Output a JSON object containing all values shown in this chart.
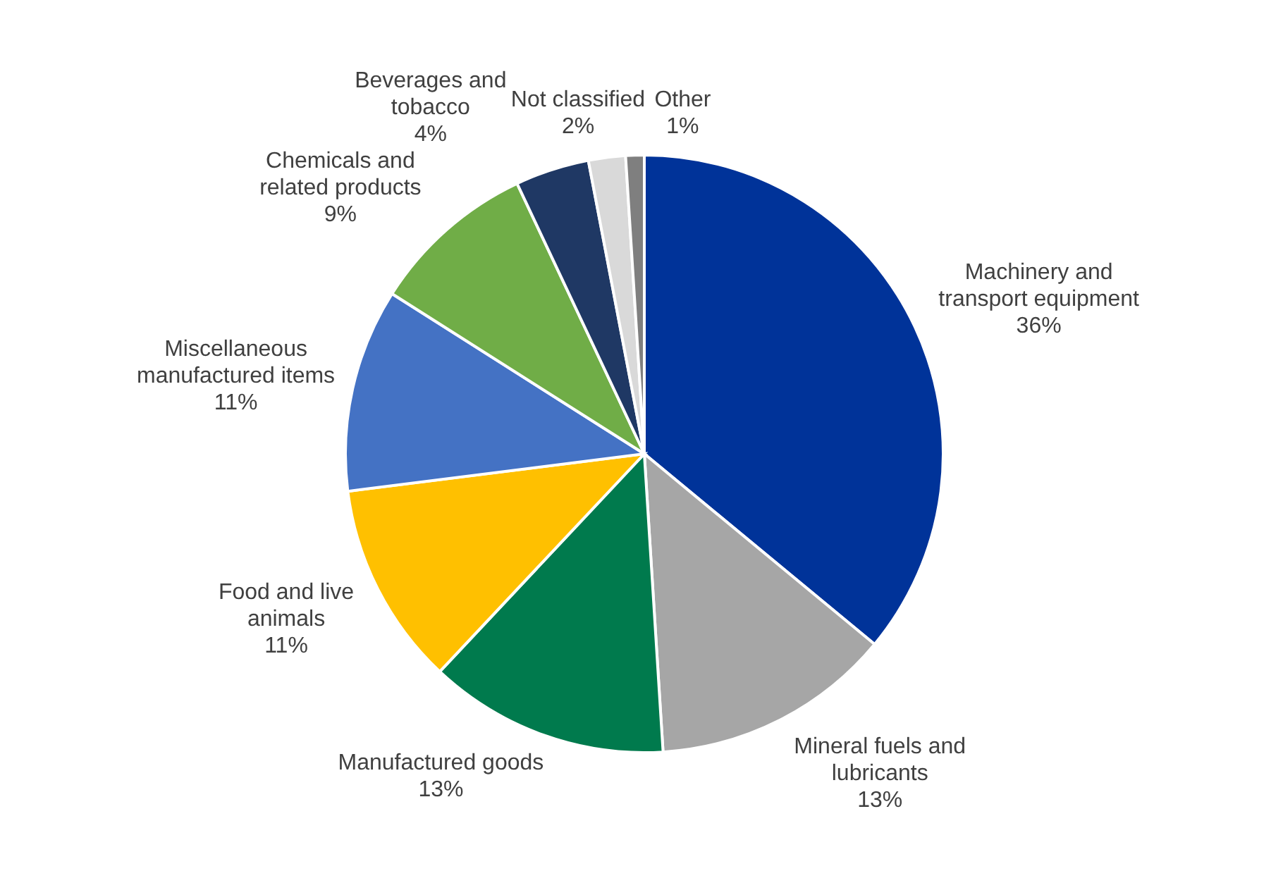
{
  "chart_data": {
    "type": "pie",
    "categories": [
      "Machinery and transport equipment",
      "Mineral fuels and lubricants",
      "Manufactured goods",
      "Food and live animals",
      "Miscellaneous manufactured items",
      "Chemicals and related products",
      "Beverages and tobacco",
      "Not classified",
      "Other"
    ],
    "values": [
      36,
      13,
      13,
      11,
      11,
      9,
      4,
      2,
      1
    ],
    "colors": [
      "#003399",
      "#a6a6a6",
      "#007a4d",
      "#ffc000",
      "#4472c4",
      "#70ad47",
      "#1f3864",
      "#d9d9d9",
      "#7f7f7f"
    ],
    "value_labels": [
      "36%",
      "13%",
      "13%",
      "11%",
      "11%",
      "9%",
      "4%",
      "2%",
      "1%"
    ]
  }
}
